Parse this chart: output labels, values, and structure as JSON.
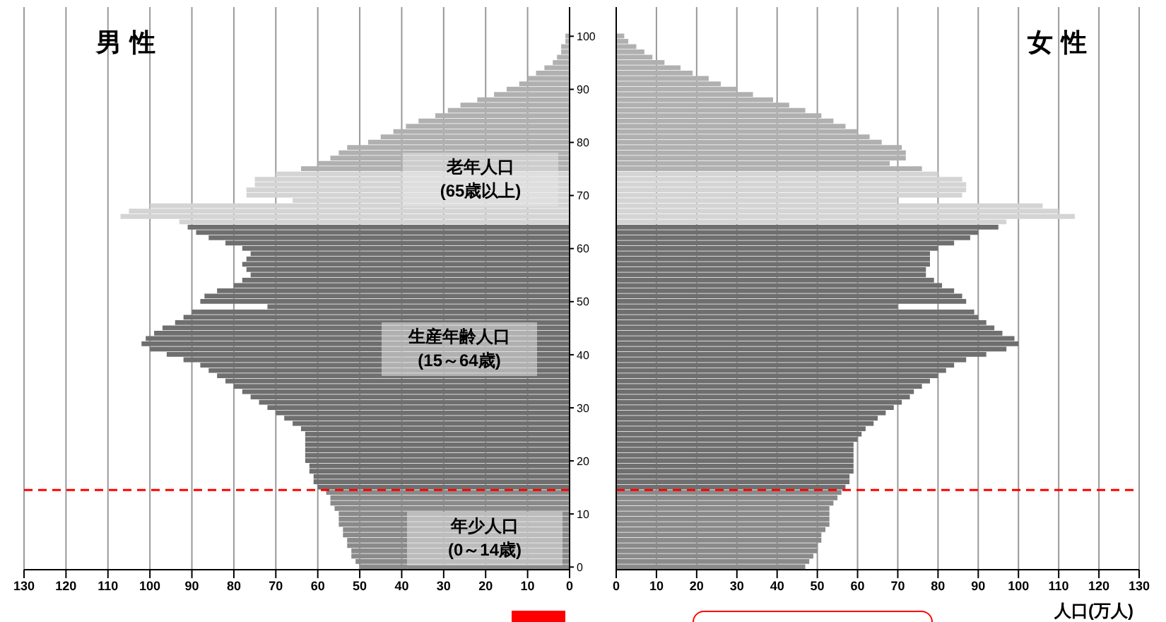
{
  "chart_data": [
    {
      "type": "bar",
      "orientation": "horizontal",
      "title": "男性",
      "x": [
        100,
        99,
        98,
        97,
        96,
        95,
        94,
        93,
        92,
        91,
        90,
        89,
        88,
        87,
        86,
        85,
        84,
        83,
        82,
        81,
        80,
        79,
        78,
        77,
        76,
        75,
        74,
        73,
        72,
        71,
        70,
        69,
        68,
        67,
        66,
        65,
        64,
        63,
        62,
        61,
        60,
        59,
        58,
        57,
        56,
        55,
        54,
        53,
        52,
        51,
        50,
        49,
        48,
        47,
        46,
        45,
        44,
        43,
        42,
        41,
        40,
        39,
        38,
        37,
        36,
        35,
        34,
        33,
        32,
        31,
        30,
        29,
        28,
        27,
        26,
        25,
        24,
        23,
        22,
        21,
        20,
        19,
        18,
        17,
        16,
        15,
        14,
        13,
        12,
        11,
        10,
        9,
        8,
        7,
        6,
        5,
        4,
        3,
        2,
        1,
        0
      ],
      "series": [
        {
          "values": [
            1,
            1,
            2,
            2,
            3,
            4,
            6,
            8,
            10,
            12,
            15,
            18,
            22,
            26,
            29,
            32,
            36,
            39,
            42,
            45,
            48,
            53,
            55,
            57,
            60,
            64,
            70,
            75,
            75,
            77,
            77,
            66,
            100,
            105,
            107,
            93,
            91,
            89,
            86,
            82,
            78,
            76,
            77,
            78,
            77,
            76,
            78,
            80,
            84,
            87,
            88,
            72,
            90,
            92,
            94,
            97,
            99,
            101,
            102,
            100,
            96,
            92,
            88,
            86,
            84,
            82,
            80,
            78,
            76,
            74,
            72,
            70,
            68,
            66,
            64,
            63,
            63,
            63,
            63,
            63,
            63,
            62,
            62,
            61,
            61,
            60,
            58,
            57,
            57,
            56,
            55,
            55,
            55,
            54,
            54,
            53,
            53,
            52,
            52,
            51,
            50
          ],
          "colors": [
            "#b0b0b0",
            "#b0b0b0",
            "#b0b0b0",
            "#b0b0b0",
            "#b0b0b0",
            "#b0b0b0",
            "#b0b0b0",
            "#b0b0b0",
            "#b0b0b0",
            "#b0b0b0",
            "#b0b0b0",
            "#b0b0b0",
            "#b0b0b0",
            "#b0b0b0",
            "#b0b0b0",
            "#b0b0b0",
            "#b0b0b0",
            "#b0b0b0",
            "#b0b0b0",
            "#b0b0b0",
            "#b0b0b0",
            "#b0b0b0",
            "#b0b0b0",
            "#b0b0b0",
            "#b0b0b0",
            "#b0b0b0",
            "#d4d4d4",
            "#d4d4d4",
            "#d4d4d4",
            "#d4d4d4",
            "#d4d4d4",
            "#d4d4d4",
            "#d4d4d4",
            "#d4d4d4",
            "#d4d4d4",
            "#d4d4d4",
            "#6f6f6f",
            "#6f6f6f",
            "#6f6f6f",
            "#6f6f6f",
            "#6f6f6f",
            "#6f6f6f",
            "#6f6f6f",
            "#6f6f6f",
            "#6f6f6f",
            "#6f6f6f",
            "#6f6f6f",
            "#6f6f6f",
            "#6f6f6f",
            "#6f6f6f",
            "#6f6f6f",
            "#6f6f6f",
            "#6f6f6f",
            "#6f6f6f",
            "#6f6f6f",
            "#6f6f6f",
            "#6f6f6f",
            "#6f6f6f",
            "#6f6f6f",
            "#6f6f6f",
            "#6f6f6f",
            "#6f6f6f",
            "#6f6f6f",
            "#6f6f6f",
            "#6f6f6f",
            "#6f6f6f",
            "#6f6f6f",
            "#6f6f6f",
            "#6f6f6f",
            "#6f6f6f",
            "#6f6f6f",
            "#6f6f6f",
            "#6f6f6f",
            "#6f6f6f",
            "#6f6f6f",
            "#6f6f6f",
            "#6f6f6f",
            "#6f6f6f",
            "#6f6f6f",
            "#6f6f6f",
            "#6f6f6f",
            "#6f6f6f",
            "#6f6f6f",
            "#6f6f6f",
            "#6f6f6f",
            "#6f6f6f",
            "#8a8a8a",
            "#8a8a8a",
            "#8a8a8a",
            "#8a8a8a",
            "#8a8a8a",
            "#8a8a8a",
            "#8a8a8a",
            "#8a8a8a",
            "#8a8a8a",
            "#8a8a8a",
            "#8a8a8a",
            "#8a8a8a",
            "#8a8a8a",
            "#8a8a8a",
            "#8a8a8a"
          ]
        }
      ],
      "xlim": [
        130,
        0
      ],
      "xticks": [
        130,
        120,
        110,
        100,
        90,
        80,
        70,
        60,
        50,
        40,
        30,
        20,
        10,
        0
      ],
      "ylim": [
        -0.5,
        105.5
      ],
      "yticks": [
        0,
        10,
        20,
        30,
        40,
        50,
        60,
        70,
        80,
        90,
        100
      ],
      "grid": "x",
      "legend": false,
      "ref_lines": [
        {
          "axis": "y",
          "value": 14.5,
          "color": "#ff0000",
          "line_style": "dashed"
        }
      ],
      "annotations": [
        "老年人口\n(65歳以上)",
        "生産年齢人口\n(15～64歳)",
        "年少人口\n(0～14歳)"
      ]
    },
    {
      "type": "bar",
      "orientation": "horizontal",
      "title": "女性",
      "xlabel": "人口(万人)",
      "tick_labels": "x",
      "x": [
        100,
        99,
        98,
        97,
        96,
        95,
        94,
        93,
        92,
        91,
        90,
        89,
        88,
        87,
        86,
        85,
        84,
        83,
        82,
        81,
        80,
        79,
        78,
        77,
        76,
        75,
        74,
        73,
        72,
        71,
        70,
        69,
        68,
        67,
        66,
        65,
        64,
        63,
        62,
        61,
        60,
        59,
        58,
        57,
        56,
        55,
        54,
        53,
        52,
        51,
        50,
        49,
        48,
        47,
        46,
        45,
        44,
        43,
        42,
        41,
        40,
        39,
        38,
        37,
        36,
        35,
        34,
        33,
        32,
        31,
        30,
        29,
        28,
        27,
        26,
        25,
        24,
        23,
        22,
        21,
        20,
        19,
        18,
        17,
        16,
        15,
        14,
        13,
        12,
        11,
        10,
        9,
        8,
        7,
        6,
        5,
        4,
        3,
        2,
        1,
        0
      ],
      "series": [
        {
          "values": [
            2,
            3,
            5,
            7,
            9,
            12,
            16,
            19,
            23,
            26,
            30,
            34,
            39,
            43,
            47,
            51,
            54,
            57,
            60,
            63,
            66,
            71,
            72,
            72,
            68,
            76,
            80,
            86,
            87,
            87,
            86,
            70,
            106,
            110,
            114,
            97,
            95,
            90,
            88,
            84,
            80,
            78,
            78,
            78,
            77,
            77,
            79,
            81,
            84,
            86,
            87,
            70,
            89,
            90,
            92,
            94,
            96,
            99,
            100,
            97,
            92,
            87,
            84,
            82,
            80,
            78,
            76,
            74,
            73,
            71,
            69,
            67,
            65,
            64,
            62,
            61,
            60,
            59,
            59,
            59,
            59,
            59,
            59,
            58,
            58,
            57,
            56,
            55,
            54,
            53,
            53,
            53,
            53,
            52,
            51,
            51,
            50,
            50,
            49,
            48,
            47
          ],
          "colors": [
            "#b0b0b0",
            "#b0b0b0",
            "#b0b0b0",
            "#b0b0b0",
            "#b0b0b0",
            "#b0b0b0",
            "#b0b0b0",
            "#b0b0b0",
            "#b0b0b0",
            "#b0b0b0",
            "#b0b0b0",
            "#b0b0b0",
            "#b0b0b0",
            "#b0b0b0",
            "#b0b0b0",
            "#b0b0b0",
            "#b0b0b0",
            "#b0b0b0",
            "#b0b0b0",
            "#b0b0b0",
            "#b0b0b0",
            "#b0b0b0",
            "#b0b0b0",
            "#b0b0b0",
            "#b0b0b0",
            "#b0b0b0",
            "#d4d4d4",
            "#d4d4d4",
            "#d4d4d4",
            "#d4d4d4",
            "#d4d4d4",
            "#d4d4d4",
            "#d4d4d4",
            "#d4d4d4",
            "#d4d4d4",
            "#d4d4d4",
            "#6f6f6f",
            "#6f6f6f",
            "#6f6f6f",
            "#6f6f6f",
            "#6f6f6f",
            "#6f6f6f",
            "#6f6f6f",
            "#6f6f6f",
            "#6f6f6f",
            "#6f6f6f",
            "#6f6f6f",
            "#6f6f6f",
            "#6f6f6f",
            "#6f6f6f",
            "#6f6f6f",
            "#6f6f6f",
            "#6f6f6f",
            "#6f6f6f",
            "#6f6f6f",
            "#6f6f6f",
            "#6f6f6f",
            "#6f6f6f",
            "#6f6f6f",
            "#6f6f6f",
            "#6f6f6f",
            "#6f6f6f",
            "#6f6f6f",
            "#6f6f6f",
            "#6f6f6f",
            "#6f6f6f",
            "#6f6f6f",
            "#6f6f6f",
            "#6f6f6f",
            "#6f6f6f",
            "#6f6f6f",
            "#6f6f6f",
            "#6f6f6f",
            "#6f6f6f",
            "#6f6f6f",
            "#6f6f6f",
            "#6f6f6f",
            "#6f6f6f",
            "#6f6f6f",
            "#6f6f6f",
            "#6f6f6f",
            "#6f6f6f",
            "#6f6f6f",
            "#6f6f6f",
            "#6f6f6f",
            "#6f6f6f",
            "#8a8a8a",
            "#8a8a8a",
            "#8a8a8a",
            "#8a8a8a",
            "#8a8a8a",
            "#8a8a8a",
            "#8a8a8a",
            "#8a8a8a",
            "#8a8a8a",
            "#8a8a8a",
            "#8a8a8a",
            "#8a8a8a",
            "#8a8a8a",
            "#8a8a8a",
            "#8a8a8a"
          ]
        }
      ],
      "xlim": [
        0,
        130
      ],
      "xticks": [
        0,
        10,
        20,
        30,
        40,
        50,
        60,
        70,
        80,
        90,
        100,
        110,
        120,
        130
      ],
      "ylim": [
        -0.5,
        105.5
      ],
      "yticks": [
        0,
        10,
        20,
        30,
        40,
        50,
        60,
        70,
        80,
        90,
        100
      ],
      "grid": "x",
      "legend": false,
      "ref_lines": [
        {
          "axis": "y",
          "value": 14.5,
          "color": "#ff0000",
          "line_style": "dashed"
        }
      ]
    }
  ]
}
